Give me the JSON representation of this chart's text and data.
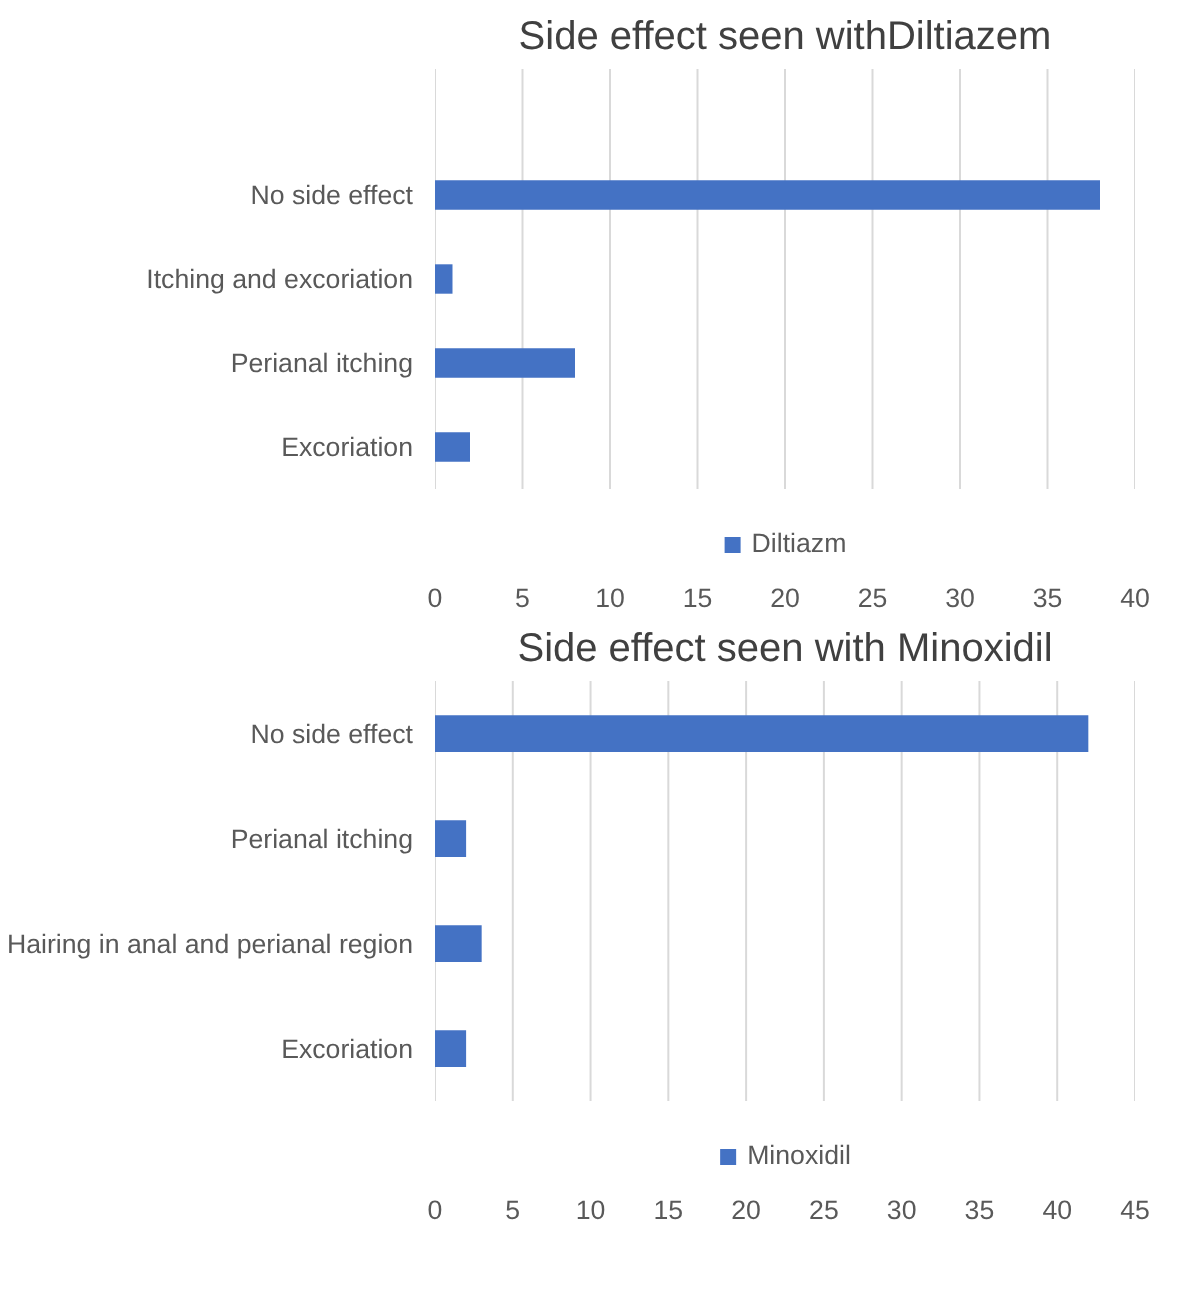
{
  "chart_data": [
    {
      "type": "bar",
      "orientation": "horizontal",
      "title": "Side effect seen withDiltiazem",
      "categories": [
        null,
        "No side effect",
        "Itching and excoriation",
        "Perianal itching",
        "Excoriation"
      ],
      "series": [
        {
          "name": "Diltiazm",
          "color": "#4472c4",
          "values": [
            null,
            38,
            1,
            8,
            2
          ]
        }
      ],
      "xlim": [
        0,
        40
      ],
      "xticks": [
        0,
        5,
        10,
        15,
        20,
        25,
        30,
        35,
        40
      ],
      "grid": "x",
      "legend": "bottom"
    },
    {
      "type": "bar",
      "orientation": "horizontal",
      "title": "Side effect seen with Minoxidil",
      "categories": [
        "No side effect",
        "Perianal itching",
        "Hairing in anal and perianal region",
        "Excoriation"
      ],
      "series": [
        {
          "name": "Minoxidil",
          "color": "#4472c4",
          "values": [
            42,
            2,
            3,
            2
          ]
        }
      ],
      "xlim": [
        0,
        45
      ],
      "xticks": [
        0,
        5,
        10,
        15,
        20,
        25,
        30,
        35,
        40,
        45
      ],
      "grid": "x",
      "legend": "bottom"
    }
  ]
}
